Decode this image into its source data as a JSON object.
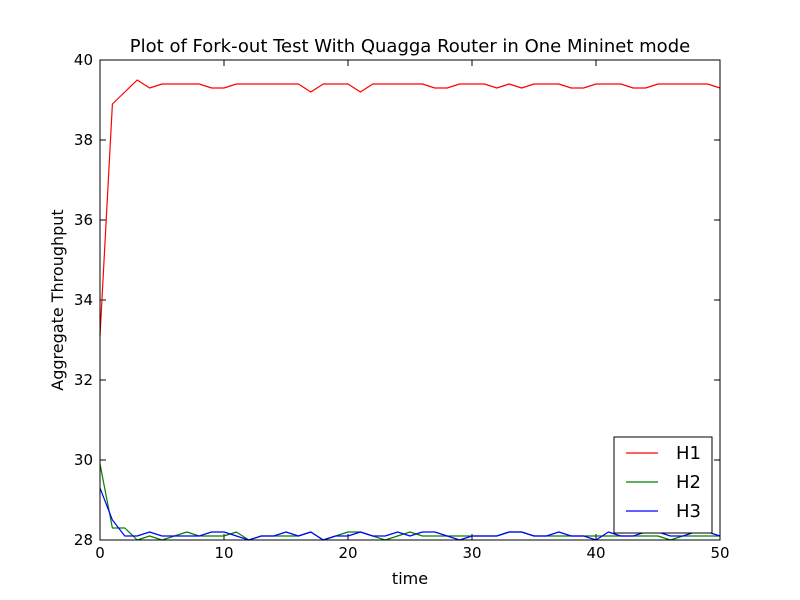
{
  "chart_data": {
    "type": "line",
    "title": "Plot of Fork-out Test With Quagga Router in One Mininet mode",
    "xlabel": "time",
    "ylabel": "Aggregate Throughput",
    "xlim": [
      0,
      50
    ],
    "ylim": [
      28,
      40
    ],
    "xticks": [
      "0",
      "10",
      "20",
      "30",
      "40",
      "50"
    ],
    "yticks": [
      "28",
      "30",
      "32",
      "34",
      "36",
      "38",
      "40"
    ],
    "grid": false,
    "legend_position": "lower-right",
    "x": [
      0,
      1,
      2,
      3,
      4,
      5,
      6,
      7,
      8,
      9,
      10,
      11,
      12,
      13,
      14,
      15,
      16,
      17,
      18,
      19,
      20,
      21,
      22,
      23,
      24,
      25,
      26,
      27,
      28,
      29,
      30,
      31,
      32,
      33,
      34,
      35,
      36,
      37,
      38,
      39,
      40,
      41,
      42,
      43,
      44,
      45,
      46,
      47,
      48,
      49,
      50
    ],
    "series": [
      {
        "name": "H1",
        "color": "#ff0000",
        "values": [
          33.1,
          38.9,
          39.2,
          39.5,
          39.3,
          39.4,
          39.4,
          39.4,
          39.4,
          39.3,
          39.3,
          39.4,
          39.4,
          39.4,
          39.4,
          39.4,
          39.4,
          39.2,
          39.4,
          39.4,
          39.4,
          39.2,
          39.4,
          39.4,
          39.4,
          39.4,
          39.4,
          39.3,
          39.3,
          39.4,
          39.4,
          39.4,
          39.3,
          39.4,
          39.3,
          39.4,
          39.4,
          39.4,
          39.3,
          39.3,
          39.4,
          39.4,
          39.4,
          39.3,
          39.3,
          39.4,
          39.4,
          39.4,
          39.4,
          39.4,
          39.3
        ]
      },
      {
        "name": "H2",
        "color": "#008000",
        "values": [
          29.9,
          28.3,
          28.3,
          28.0,
          28.1,
          28.0,
          28.1,
          28.2,
          28.1,
          28.1,
          28.1,
          28.2,
          28.0,
          28.1,
          28.1,
          28.1,
          28.1,
          28.2,
          28.0,
          28.1,
          28.2,
          28.2,
          28.1,
          28.0,
          28.1,
          28.2,
          28.1,
          28.1,
          28.1,
          28.1,
          28.1,
          28.1,
          28.1,
          28.2,
          28.2,
          28.1,
          28.1,
          28.1,
          28.1,
          28.1,
          28.1,
          28.1,
          28.1,
          28.1,
          28.1,
          28.1,
          28.0,
          28.1,
          28.1,
          28.1,
          28.1
        ]
      },
      {
        "name": "H3",
        "color": "#0000ff",
        "values": [
          29.3,
          28.5,
          28.1,
          28.1,
          28.2,
          28.1,
          28.1,
          28.1,
          28.1,
          28.2,
          28.2,
          28.1,
          28.0,
          28.1,
          28.1,
          28.2,
          28.1,
          28.2,
          28.0,
          28.1,
          28.1,
          28.2,
          28.1,
          28.1,
          28.2,
          28.1,
          28.2,
          28.2,
          28.1,
          28.0,
          28.1,
          28.1,
          28.1,
          28.2,
          28.2,
          28.1,
          28.1,
          28.2,
          28.1,
          28.1,
          28.0,
          28.2,
          28.1,
          28.1,
          28.2,
          28.2,
          28.1,
          28.1,
          28.2,
          28.2,
          28.1
        ]
      }
    ]
  }
}
